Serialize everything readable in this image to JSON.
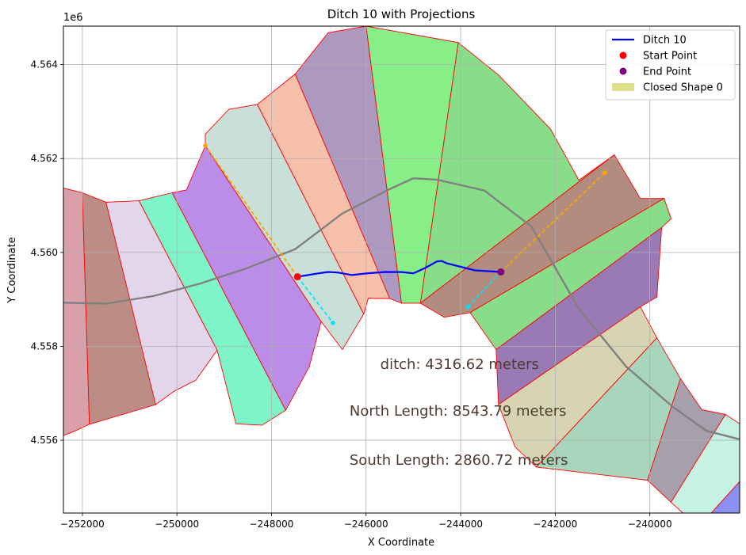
{
  "chart_data": {
    "type": "line",
    "title": "Ditch 10 with Projections",
    "xlabel": "X Coordinate",
    "ylabel": "Y Coordinate",
    "y_offset_label": "1e6",
    "xlim": [
      -252400,
      -238100
    ],
    "ylim": [
      4.55445,
      4.56482
    ],
    "xticks": [
      -252000,
      -250000,
      -248000,
      -246000,
      -244000,
      -242000,
      -240000
    ],
    "xtick_labels": [
      "−252000",
      "−250000",
      "−248000",
      "−246000",
      "−244000",
      "−242000",
      "−240000"
    ],
    "yticks": [
      4.556,
      4.558,
      4.56,
      4.562,
      4.564
    ],
    "ytick_labels": [
      "4.556",
      "4.558",
      "4.560",
      "4.562",
      "4.564"
    ],
    "grid": true,
    "legend_position": "top-right",
    "legend": [
      {
        "label": "Ditch 10",
        "kind": "line",
        "color": "#0000ff"
      },
      {
        "label": "Start Point",
        "kind": "dot",
        "color": "#ff0000"
      },
      {
        "label": "End Point",
        "kind": "dot",
        "color": "#800080"
      },
      {
        "label": "Closed Shape 0",
        "kind": "patch",
        "color": "#e1e08a"
      }
    ],
    "annotations": [
      {
        "text": "ditch: 4316.62 meters",
        "x": -245700,
        "y": 4.55752
      },
      {
        "text": "North Length: 8543.79 meters",
        "x": -246350,
        "y": 4.55652
      },
      {
        "text": "South Length: 2860.72 meters",
        "x": -246350,
        "y": 4.55548
      }
    ],
    "ditch": {
      "x": [
        -247450,
        -247000,
        -246800,
        -246600,
        -246300,
        -246000,
        -245600,
        -245250,
        -245000,
        -244750,
        -244500,
        -244400,
        -244300,
        -243700,
        -243150
      ],
      "y": [
        4.559482,
        4.559555,
        4.559585,
        4.559572,
        4.559518,
        4.559552,
        4.559585,
        4.559582,
        4.559555,
        4.559668,
        4.559808,
        4.559818,
        4.559772,
        4.559618,
        4.559585
      ]
    },
    "start_point": {
      "x": -247450,
      "y": 4.559482
    },
    "end_point": {
      "x": -243150,
      "y": 4.559585
    },
    "north_projections": [
      {
        "x": [
          -247450,
          -249400
        ],
        "y": [
          4.559482,
          4.562275
        ]
      },
      {
        "x": [
          -243150,
          -240950
        ],
        "y": [
          4.559585,
          4.5617
        ]
      }
    ],
    "south_projections": [
      {
        "x": [
          -247450,
          -246700
        ],
        "y": [
          4.559482,
          4.5585
        ]
      },
      {
        "x": [
          -243150,
          -243850
        ],
        "y": [
          4.559585,
          4.55884
        ]
      }
    ],
    "centerline": {
      "x": [
        -252400,
        -251500,
        -250500,
        -249500,
        -248500,
        -247500,
        -246500,
        -245500,
        -245000,
        -244500,
        -243500,
        -242500,
        -241500,
        -240500,
        -239500,
        -238800,
        -238100
      ],
      "y": [
        4.55893,
        4.55891,
        4.55907,
        4.55934,
        4.55967,
        4.56007,
        4.56083,
        4.56135,
        4.56158,
        4.56155,
        4.56132,
        4.56055,
        4.5588,
        4.55757,
        4.5567,
        4.5562,
        4.55602
      ]
    },
    "colors": {
      "ditch": "#0000ff",
      "start": "#ff0000",
      "end": "#800080",
      "north_projection": "#ffa500",
      "south_projection": "#00e5ff",
      "centerline": "#808080",
      "segment_border": "#ff0000",
      "annotation_text": "#4d3a30"
    },
    "segments": [
      {
        "color": "#d9a0aa",
        "points": [
          [
            -252400,
            4.56137
          ],
          [
            -252000,
            4.56127
          ],
          [
            -251850,
            4.55634
          ],
          [
            -252150,
            4.5562
          ],
          [
            -252400,
            4.5561
          ]
        ]
      },
      {
        "color": "#bc8d84",
        "points": [
          [
            -252000,
            4.56127
          ],
          [
            -251500,
            4.56107
          ],
          [
            -250350,
            4.5585
          ],
          [
            -250450,
            4.55676
          ],
          [
            -251850,
            4.55634
          ]
        ]
      },
      {
        "color": "#e4d6ea",
        "points": [
          [
            -251500,
            4.56107
          ],
          [
            -250800,
            4.5611
          ],
          [
            -249150,
            4.55792
          ],
          [
            -249600,
            4.55728
          ],
          [
            -250050,
            4.55705
          ],
          [
            -250450,
            4.55676
          ]
        ]
      },
      {
        "color": "#7df5c8",
        "points": [
          [
            -250800,
            4.5611
          ],
          [
            -250100,
            4.56127
          ],
          [
            -247700,
            4.55664
          ],
          [
            -248200,
            4.55632
          ],
          [
            -248750,
            4.55635
          ],
          [
            -249150,
            4.55792
          ]
        ]
      },
      {
        "color": "#bb8de8",
        "points": [
          [
            -250100,
            4.56127
          ],
          [
            -249800,
            4.56133
          ],
          [
            -249400,
            4.56227
          ],
          [
            -246950,
            4.55853
          ],
          [
            -247200,
            4.55757
          ],
          [
            -247700,
            4.55664
          ]
        ]
      },
      {
        "color": "#c8e0d8",
        "points": [
          [
            -249400,
            4.56227
          ],
          [
            -249400,
            4.56252
          ],
          [
            -248900,
            4.56305
          ],
          [
            -248300,
            4.56315
          ],
          [
            -246050,
            4.55869
          ],
          [
            -246500,
            4.55793
          ],
          [
            -246950,
            4.55853
          ]
        ]
      },
      {
        "color": "#f7c0aa",
        "points": [
          [
            -248300,
            4.56315
          ],
          [
            -247500,
            4.5638
          ],
          [
            -245500,
            4.55902
          ],
          [
            -245800,
            4.55902
          ],
          [
            -245950,
            4.55903
          ],
          [
            -246050,
            4.55869
          ]
        ]
      },
      {
        "color": "#ad99bf",
        "points": [
          [
            -247500,
            4.5638
          ],
          [
            -246800,
            4.56468
          ],
          [
            -246000,
            4.56482
          ],
          [
            -245250,
            4.55892
          ],
          [
            -245500,
            4.55902
          ]
        ]
      },
      {
        "color": "#88ee88",
        "points": [
          [
            -246000,
            4.56482
          ],
          [
            -244050,
            4.56447
          ],
          [
            -244850,
            4.55892
          ],
          [
            -245250,
            4.55892
          ]
        ]
      },
      {
        "color": "#88dd88",
        "points": [
          [
            -244050,
            4.56447
          ],
          [
            -243200,
            4.56378
          ],
          [
            -242100,
            4.56263
          ],
          [
            -241500,
            4.56154
          ],
          [
            -240750,
            4.56208
          ],
          [
            -244850,
            4.55892
          ]
        ]
      },
      {
        "color": "#b38c80",
        "points": [
          [
            -240750,
            4.56208
          ],
          [
            -240200,
            4.56115
          ],
          [
            -239700,
            4.56115
          ],
          [
            -243800,
            4.55872
          ],
          [
            -244350,
            4.55862
          ],
          [
            -244850,
            4.55892
          ]
        ]
      },
      {
        "color": "#88dd88",
        "points": [
          [
            -239700,
            4.56115
          ],
          [
            -239550,
            4.56072
          ],
          [
            -239750,
            4.56053
          ],
          [
            -243250,
            4.55793
          ],
          [
            -243800,
            4.55872
          ]
        ]
      },
      {
        "color": "#9a7ab5",
        "points": [
          [
            -239750,
            4.56053
          ],
          [
            -239850,
            4.55905
          ],
          [
            -240200,
            4.55884
          ],
          [
            -243200,
            4.55676
          ],
          [
            -243250,
            4.55793
          ]
        ]
      },
      {
        "color": "#d6d4b2",
        "points": [
          [
            -240200,
            4.55884
          ],
          [
            -239850,
            4.55818
          ],
          [
            -242400,
            4.55543
          ],
          [
            -242850,
            4.55586
          ],
          [
            -243200,
            4.55676
          ]
        ]
      },
      {
        "color": "#a8d6bd",
        "points": [
          [
            -239850,
            4.55818
          ],
          [
            -239350,
            4.55731
          ],
          [
            -240050,
            4.55515
          ],
          [
            -242400,
            4.55543
          ]
        ]
      },
      {
        "color": "#a69fac",
        "points": [
          [
            -239350,
            4.55731
          ],
          [
            -238900,
            4.55665
          ],
          [
            -238400,
            4.55655
          ],
          [
            -239550,
            4.55468
          ],
          [
            -240050,
            4.55515
          ]
        ]
      },
      {
        "color": "#c5f2e2",
        "points": [
          [
            -238400,
            4.55655
          ],
          [
            -238100,
            4.55635
          ],
          [
            -238100,
            4.55512
          ],
          [
            -238700,
            4.55445
          ],
          [
            -239300,
            4.55445
          ],
          [
            -239550,
            4.55468
          ]
        ]
      },
      {
        "color": "#8a90f0",
        "points": [
          [
            -238100,
            4.55512
          ],
          [
            -238100,
            4.55445
          ],
          [
            -238700,
            4.55445
          ]
        ]
      }
    ]
  }
}
